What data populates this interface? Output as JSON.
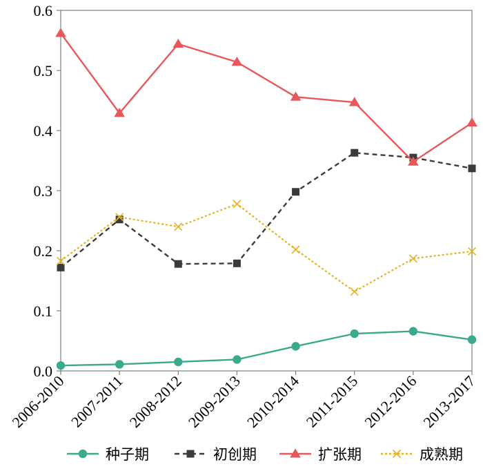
{
  "chart_data": {
    "type": "line",
    "title": "",
    "xlabel": "",
    "ylabel": "",
    "categories": [
      "2006-2010",
      "2007-2011",
      "2008-2012",
      "2009-2013",
      "2010-2014",
      "2011-2015",
      "2012-2016",
      "2013-2017"
    ],
    "ylim": [
      0,
      0.6
    ],
    "yticks": [
      "0.0",
      "0.1",
      "0.2",
      "0.3",
      "0.4",
      "0.5",
      "0.6"
    ],
    "grid": false,
    "legend_position": "bottom",
    "series": [
      {
        "name": "种子期",
        "color": "#3aaa8c",
        "style": "solid",
        "marker": "circle",
        "values": [
          0.009,
          0.011,
          0.015,
          0.019,
          0.041,
          0.062,
          0.066,
          0.052
        ]
      },
      {
        "name": "初创期",
        "color": "#3b3b3b",
        "style": "dashed",
        "marker": "square",
        "values": [
          0.172,
          0.252,
          0.178,
          0.179,
          0.298,
          0.363,
          0.355,
          0.337
        ]
      },
      {
        "name": "扩张期",
        "color": "#e8585a",
        "style": "solid",
        "marker": "triangle",
        "values": [
          0.562,
          0.429,
          0.544,
          0.514,
          0.456,
          0.447,
          0.348,
          0.413
        ]
      },
      {
        "name": "成熟期",
        "color": "#e5b31e",
        "style": "dotted",
        "marker": "x",
        "values": [
          0.183,
          0.256,
          0.24,
          0.278,
          0.202,
          0.132,
          0.187,
          0.199
        ]
      }
    ]
  }
}
